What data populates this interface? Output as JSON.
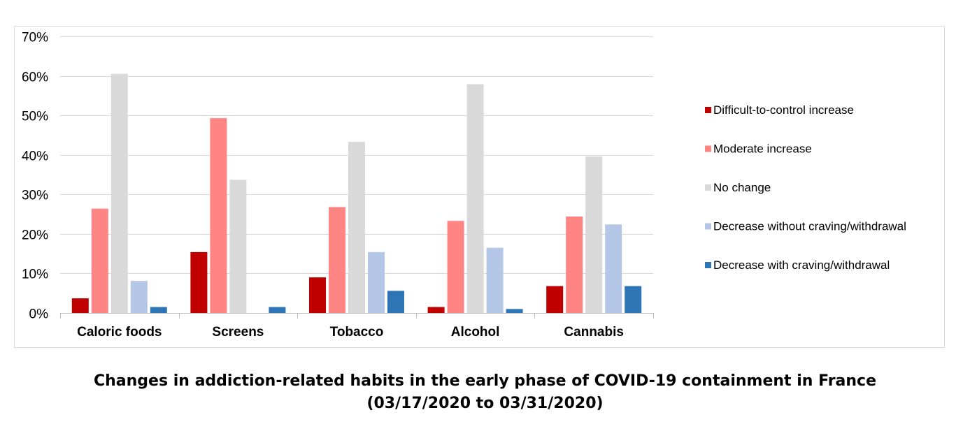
{
  "chart_data": {
    "type": "bar",
    "title": "Changes in addiction-related habits in the early phase of COVID-19 containment in France",
    "subtitle": "(03/17/2020 to 03/31/2020)",
    "categories": [
      "Caloric foods",
      "Screens",
      "Tobacco",
      "Alcohol",
      "Cannabis"
    ],
    "series": [
      {
        "name": "Difficult-to-control increase",
        "color": "#c00000",
        "values": [
          3.7,
          15.4,
          9.0,
          1.5,
          6.8
        ]
      },
      {
        "name": "Moderate increase",
        "color": "#ff8585",
        "values": [
          26.4,
          49.3,
          26.8,
          23.3,
          24.4
        ]
      },
      {
        "name": "No change",
        "color": "#d9d9d9",
        "values": [
          60.5,
          33.7,
          43.3,
          57.9,
          39.6
        ]
      },
      {
        "name": "Decrease without craving/withdrawal",
        "color": "#b4c7e7",
        "values": [
          8.1,
          0,
          15.4,
          16.5,
          22.4
        ]
      },
      {
        "name": "Decrease with craving/withdrawal",
        "color": "#2e75b6",
        "values": [
          1.5,
          1.5,
          5.6,
          1.0,
          6.8
        ]
      }
    ],
    "y_ticks": [
      "0%",
      "10%",
      "20%",
      "30%",
      "40%",
      "50%",
      "60%",
      "70%"
    ],
    "ylim": [
      0,
      70
    ],
    "y_unit": "%",
    "grid": true,
    "legend_position": "right"
  }
}
